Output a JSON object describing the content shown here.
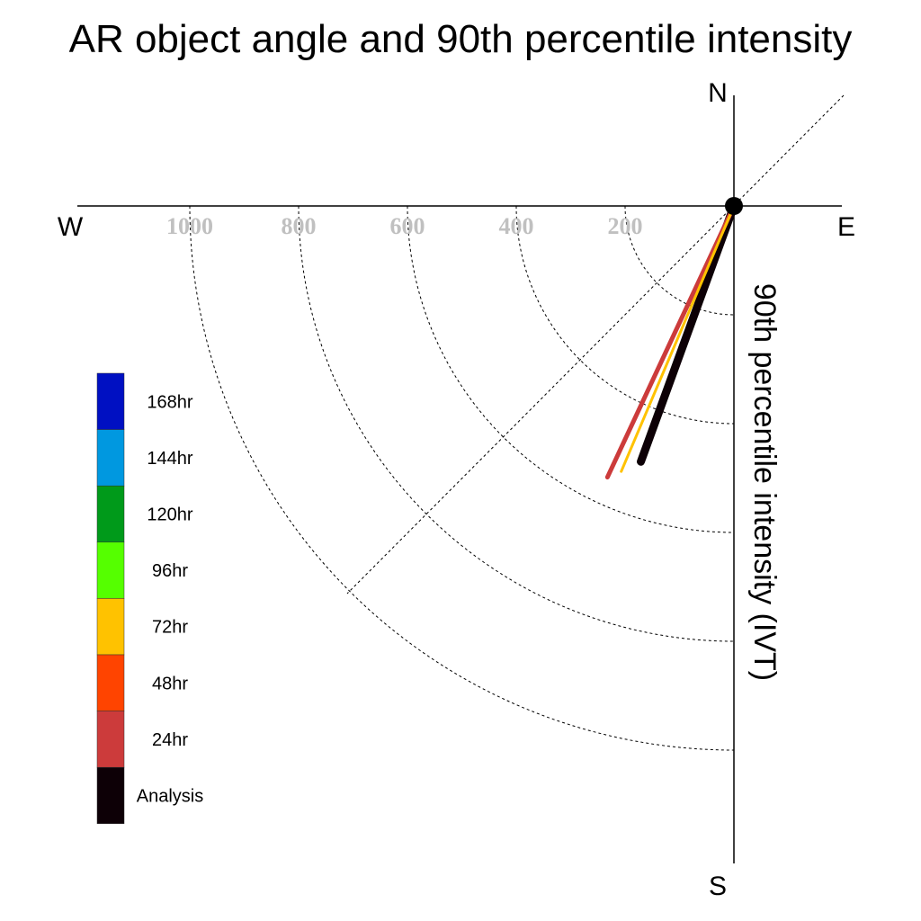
{
  "chart_data": {
    "type": "polar-vector",
    "title": "AR object angle and 90th percentile intensity",
    "radial_label": "90th percentile intensity (IVT)",
    "compass": {
      "north": "N",
      "south": "S",
      "east": "E",
      "west": "W"
    },
    "radial_ticks": [
      "1000",
      "800",
      "600",
      "400",
      "200"
    ],
    "radial_tick_values": [
      1000,
      800,
      600,
      400,
      200
    ],
    "rmax": 1200,
    "series": [
      {
        "name": "Analysis",
        "angle_deg": 200,
        "intensity": 500,
        "color": "#0d0006"
      },
      {
        "name": "24hr",
        "angle_deg": 205,
        "intensity": 550,
        "color": "#cc3b3b"
      },
      {
        "name": "72hr",
        "angle_deg": 203,
        "intensity": 530,
        "color": "#ffc200"
      }
    ],
    "legend": [
      {
        "label": "168hr",
        "color": "#0010c2"
      },
      {
        "label": "144hr",
        "color": "#0098e0"
      },
      {
        "label": "120hr",
        "color": "#009a1a"
      },
      {
        "label": "96hr",
        "color": "#55ff00"
      },
      {
        "label": "72hr",
        "color": "#ffc200"
      },
      {
        "label": "48hr",
        "color": "#ff4400"
      },
      {
        "label": "24hr",
        "color": "#cc3b3b"
      },
      {
        "label": "Analysis",
        "color": "#0d0006"
      }
    ]
  }
}
